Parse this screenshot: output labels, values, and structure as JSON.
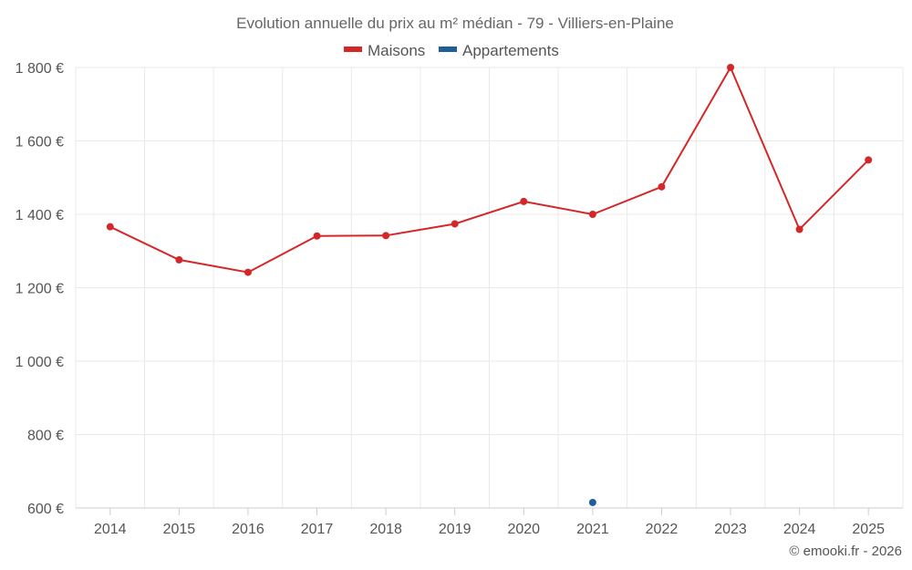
{
  "chart_data": {
    "type": "line",
    "title": "Evolution annuelle du prix au m² médian - 79 - Villiers-en-Plaine",
    "categories": [
      "2014",
      "2015",
      "2016",
      "2017",
      "2018",
      "2019",
      "2020",
      "2021",
      "2022",
      "2023",
      "2024",
      "2025"
    ],
    "series": [
      {
        "name": "Maisons",
        "color": "#d62728",
        "values": [
          1366,
          1276,
          1242,
          1341,
          1342,
          1374,
          1435,
          1400,
          1475,
          1800,
          1359,
          1548
        ]
      },
      {
        "name": "Appartements",
        "color": "#1f5f99",
        "values": [
          null,
          null,
          null,
          null,
          null,
          null,
          null,
          615,
          null,
          null,
          null,
          null
        ]
      }
    ],
    "ylim": [
      600,
      1800
    ],
    "yticks": [
      600,
      800,
      1000,
      1200,
      1400,
      1600,
      1800
    ],
    "ytick_labels": [
      "600 €",
      "800 €",
      "1 000 €",
      "1 200 €",
      "1 400 €",
      "1 600 €",
      "1 800 €"
    ],
    "xlabel": "",
    "ylabel": "",
    "grid": true,
    "legend_position": "top-center"
  },
  "credit": "© emooki.fr - 2026"
}
